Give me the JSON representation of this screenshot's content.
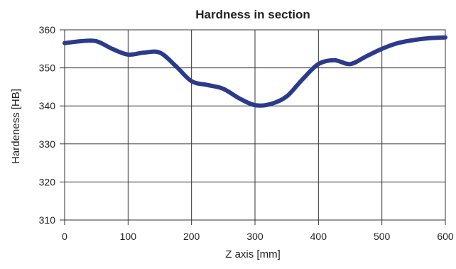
{
  "chart_data": {
    "type": "line",
    "title": "Hardness in section",
    "xlabel": "Z axis [mm]",
    "ylabel": "Hardeness [HB]",
    "xlim": [
      0,
      600
    ],
    "ylim": [
      310,
      360
    ],
    "x_ticks": [
      0,
      100,
      200,
      300,
      400,
      500,
      600
    ],
    "y_ticks": [
      310,
      320,
      330,
      340,
      350,
      360
    ],
    "grid": true,
    "colors": {
      "line": "#2b3a8c",
      "grid": "#333333",
      "frame": "#333333"
    },
    "series": [
      {
        "x": [
          0,
          25,
          50,
          75,
          100,
          125,
          150,
          175,
          200,
          225,
          250,
          275,
          300,
          325,
          350,
          375,
          400,
          425,
          450,
          475,
          500,
          525,
          550,
          575,
          600
        ],
        "y": [
          356.5,
          357.0,
          357.0,
          355.0,
          353.5,
          354.0,
          354.0,
          350.5,
          346.5,
          345.5,
          344.5,
          342.0,
          340.2,
          340.5,
          342.5,
          347.0,
          351.0,
          352.0,
          351.0,
          353.0,
          355.0,
          356.5,
          357.3,
          357.8,
          358.0
        ]
      }
    ]
  }
}
